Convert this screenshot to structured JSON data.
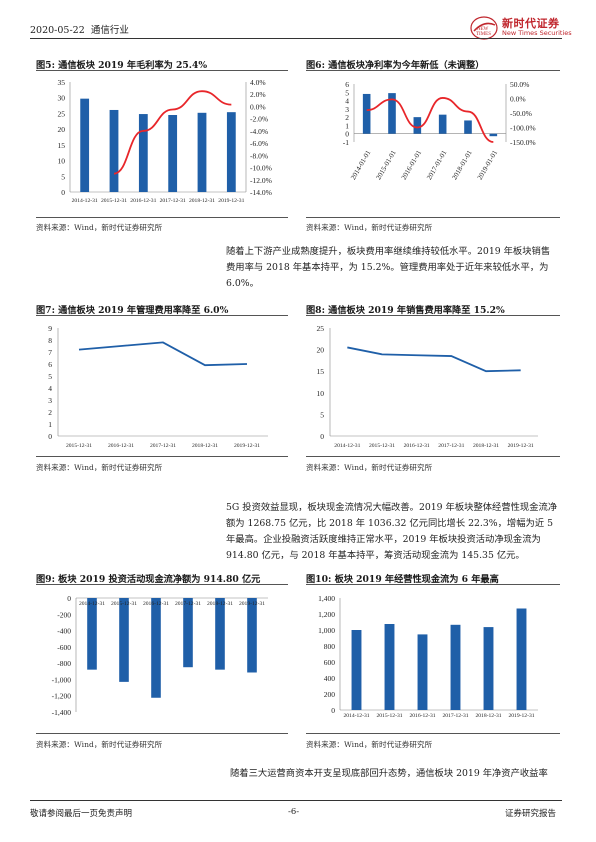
{
  "header": {
    "date": "2020-05-22",
    "industry": "通信行业",
    "logo_text": "新时代证券",
    "logo_sub": "New Times Securities"
  },
  "colors": {
    "bar": "#1f5fa8",
    "line": "#e8262a",
    "accent": "#c0262d"
  },
  "figures": {
    "f5": {
      "title": "图5:   通信板块  2019  年毛利率为  25.4%"
    },
    "f6": {
      "title": "图6:   通信板块净利率为今年新低（未调整）"
    },
    "f7": {
      "title": "图7:   通信板块  2019  年管理费用率降至  6.0%"
    },
    "f8": {
      "title": "图8:   通信板块  2019  年销售费用率降至  15.2%"
    },
    "f9": {
      "title": "图9:   板块  2019  投资活动现金流净额为  914.80  亿元"
    },
    "f10": {
      "title": "图10:   板块  2019  年经营性现金流为  6  年最高"
    }
  },
  "source": "资料来源：Wind，新时代证券研究所",
  "paragraphs": {
    "p1": "随着上下游产业成熟度提升，板块费用率继续维持较低水平。2019 年板块销售费用率与 2018 年基本持平，为 15.2%。管理费用率处于近年来较低水平，为 6.0%。",
    "p2": "5G 投资效益显现，板块现金流情况大幅改善。2019 年板块整体经营性现金流净额为 1268.75 亿元，比 2018 年 1036.32 亿元同比增长 22.3%，增幅为近 5 年最高。企业投融资活跃度维持正常水平，2019 年板块投资活动净现金流为 914.80 亿元，与 2018 年基本持平，筹资活动现金流为 145.35 亿元。",
    "p3": "随着三大运营商资本开支呈现底部回升态势，通信板块 2019 年净资产收益率"
  },
  "footer": {
    "disclaimer": "敬请参阅最后一页免责声明",
    "page": "-6-",
    "report_type": "证券研究报告"
  },
  "chart_data": [
    {
      "id": "f5",
      "type": "bar+line",
      "categories": [
        "2014-12-31",
        "2015-12-31",
        "2016-12-31",
        "2017-12-31",
        "2018-12-31",
        "2019-12-31"
      ],
      "series": [
        {
          "values": [
            29.7,
            26.1,
            24.8,
            24.5,
            25.2,
            25.4
          ],
          "axis": "left"
        },
        {
          "values": [
            null,
            -11.0,
            -4.0,
            -0.5,
            2.5,
            0.3
          ],
          "axis": "right"
        }
      ],
      "ylim": [
        0,
        35
      ],
      "yticks": [
        "0",
        "5",
        "10",
        "15",
        "20",
        "25",
        "30",
        "35"
      ],
      "y2lim": [
        -14,
        4
      ],
      "y2ticks": [
        "4.0%",
        "2.0%",
        "0.0%",
        "-2.0%",
        "-4.0%",
        "-6.0%",
        "-8.0%",
        "-10.0%",
        "-12.0%",
        "-14.0%"
      ]
    },
    {
      "id": "f6",
      "type": "bar+line",
      "categories": [
        "2014-01-01",
        "2015-01-01",
        "2016-01-01",
        "2017-01-01",
        "2018-01-01",
        "2019-01-01"
      ],
      "series": [
        {
          "values": [
            4.8,
            4.9,
            2.0,
            2.3,
            1.6,
            -0.3
          ],
          "axis": "left"
        },
        {
          "values": [
            -40,
            -3,
            -100,
            2,
            -45,
            -150
          ],
          "axis": "right"
        }
      ],
      "ylim": [
        -1,
        6
      ],
      "yticks": [
        "-1",
        "0",
        "1",
        "2",
        "3",
        "4",
        "5",
        "6"
      ],
      "y2lim": [
        -150,
        50
      ],
      "y2ticks": [
        "50.0%",
        "0.0%",
        "-50.0%",
        "-100.0%",
        "-150.0%"
      ]
    },
    {
      "id": "f7",
      "type": "line",
      "categories": [
        "2015-12-31",
        "2016-12-31",
        "2017-12-31",
        "2018-12-31",
        "2019-12-31"
      ],
      "values": [
        7.2,
        7.5,
        7.8,
        5.9,
        6.0
      ],
      "ylim": [
        0,
        9
      ],
      "yticks": [
        "0",
        "1",
        "2",
        "3",
        "4",
        "5",
        "6",
        "7",
        "8",
        "9"
      ]
    },
    {
      "id": "f8",
      "type": "line",
      "categories": [
        "2014-12-31",
        "2015-12-31",
        "2016-12-31",
        "2017-12-31",
        "2018-12-31",
        "2019-12-31"
      ],
      "values": [
        20.5,
        18.9,
        18.7,
        18.5,
        15.0,
        15.2
      ],
      "ylim": [
        0,
        25
      ],
      "yticks": [
        "0",
        "5",
        "10",
        "15",
        "20",
        "25"
      ]
    },
    {
      "id": "f9",
      "type": "bar",
      "categories": [
        "2014-12-31",
        "2015-12-31",
        "2016-12-31",
        "2017-12-31",
        "2018-12-31",
        "2019-12-31"
      ],
      "values": [
        -880,
        -1030,
        -1225,
        -850,
        -880,
        -914.8
      ],
      "ylim": [
        -1400,
        0
      ],
      "yticks": [
        "0",
        "-200",
        "-400",
        "-600",
        "-800",
        "-1,000",
        "-1,200",
        "-1,400"
      ]
    },
    {
      "id": "f10",
      "type": "bar",
      "categories": [
        "2014-12-31",
        "2015-12-31",
        "2016-12-31",
        "2017-12-31",
        "2018-12-31",
        "2019-12-31"
      ],
      "values": [
        1000,
        1075,
        945,
        1065,
        1036.32,
        1268.75
      ],
      "ylim": [
        0,
        1400
      ],
      "yticks": [
        "0",
        "200",
        "400",
        "600",
        "800",
        "1,000",
        "1,200",
        "1,400"
      ]
    }
  ]
}
